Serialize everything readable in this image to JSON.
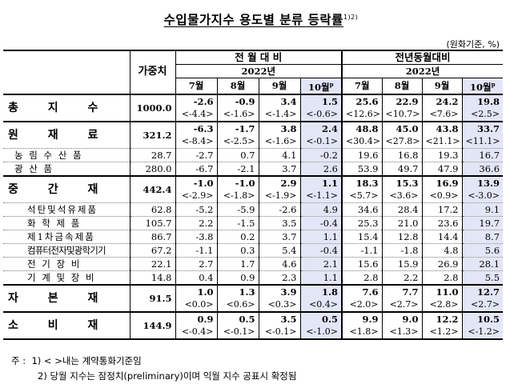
{
  "title": "수입물가지수 용도별 분류 등락률",
  "title_note": "1)2)",
  "unit": "(원화기준, %)",
  "header": {
    "group1": "전 월 대 비",
    "group2": "전년동월대비",
    "year": "2022년",
    "weight": "가중치",
    "months": [
      "7월",
      "8월",
      "9월",
      "10월"
    ],
    "prelim": "p"
  },
  "rows": [
    {
      "label": "총 지 수",
      "weight": "1000.0",
      "vals": [
        "-2.6",
        "-0.9",
        "3.4",
        "1.5",
        "25.6",
        "22.9",
        "24.2",
        "19.8"
      ],
      "sub": [
        "<-4.4>",
        "<-1.6>",
        "<-1.4>",
        "<-0.6>",
        "<12.6>",
        "<10.7>",
        "<7.6>",
        "<2.5>"
      ]
    },
    {
      "label": "원 재 료",
      "weight": "321.2",
      "vals": [
        "-6.3",
        "-1.7",
        "3.8",
        "2.4",
        "48.8",
        "45.0",
        "43.8",
        "33.7"
      ],
      "sub": [
        "<-8.4>",
        "<-2.5>",
        "<-1.6>",
        "<-0.1>",
        "<30.4>",
        "<27.8>",
        "<21.1>",
        "<11.1>"
      ]
    },
    {
      "label": "농 림 수 산 품",
      "weight": "28.7",
      "vals": [
        "-2.7",
        "0.7",
        "4.1",
        "-0.2",
        "19.6",
        "16.8",
        "19.3",
        "16.7"
      ]
    },
    {
      "label": "광 산 품",
      "weight": "280.0",
      "vals": [
        "-6.7",
        "-2.1",
        "3.7",
        "2.6",
        "53.9",
        "49.7",
        "47.9",
        "36.6"
      ]
    },
    {
      "label": "중 간 재",
      "weight": "442.4",
      "vals": [
        "-1.0",
        "-1.0",
        "2.9",
        "1.1",
        "18.3",
        "15.3",
        "16.9",
        "13.9"
      ],
      "sub": [
        "<-2.9>",
        "<-1.8>",
        "<-1.9>",
        "<-1.1>",
        "<5.7>",
        "<3.6>",
        "<0.9>",
        "<-3.0>"
      ]
    },
    {
      "label": "석탄및석유제품",
      "weight": "62.8",
      "vals": [
        "-5.2",
        "-5.9",
        "-2.6",
        "4.9",
        "34.6",
        "28.4",
        "17.2",
        "9.1"
      ]
    },
    {
      "label": "화 학 제 품",
      "weight": "105.7",
      "vals": [
        "2.2",
        "-1.5",
        "3.5",
        "-0.4",
        "25.3",
        "21.0",
        "23.6",
        "19.7"
      ]
    },
    {
      "label": "제1차금속제품",
      "weight": "86.7",
      "vals": [
        "-3.8",
        "0.2",
        "3.7",
        "1.1",
        "15.4",
        "12.8",
        "14.4",
        "8.7"
      ]
    },
    {
      "label": "컴퓨터전자및광학기기",
      "weight": "67.2",
      "vals": [
        "-1.1",
        "0.3",
        "5.4",
        "-0.4",
        "-1.1",
        "-1.8",
        "4.8",
        "5.6"
      ]
    },
    {
      "label": "전 기 장 비",
      "weight": "22.1",
      "vals": [
        "2.7",
        "1.7",
        "4.6",
        "2.1",
        "15.6",
        "15.9",
        "26.9",
        "28.1"
      ]
    },
    {
      "label": "기 계 및 장 비",
      "weight": "14.8",
      "vals": [
        "0.4",
        "0.9",
        "2.3",
        "1.1",
        "2.8",
        "2.2",
        "2.8",
        "5.5"
      ]
    },
    {
      "label": "자 본 재",
      "weight": "91.5",
      "vals": [
        "1.0",
        "1.3",
        "3.9",
        "1.8",
        "7.6",
        "7.7",
        "11.0",
        "12.7"
      ],
      "sub": [
        "<0.0>",
        "<0.6>",
        "<0.3>",
        "<0.4>",
        "<2.0>",
        "<2.7>",
        "<2.8>",
        "<2.7>"
      ]
    },
    {
      "label": "소 비 재",
      "weight": "144.9",
      "vals": [
        "0.9",
        "0.5",
        "3.5",
        "0.5",
        "9.9",
        "9.0",
        "12.2",
        "10.5"
      ],
      "sub": [
        "<-0.4>",
        "<-0.1>",
        "<-0.1>",
        "<-1.0>",
        "<1.8>",
        "<1.3>",
        "<1.2>",
        "<-1.2>"
      ]
    }
  ],
  "notes": {
    "prefix": "주 :",
    "n1": "1) < >내는 계약통화기준임",
    "n2": "2) 당월 지수는 잠정치(preliminary)이며 익월 지수 공표시 확정됨"
  }
}
